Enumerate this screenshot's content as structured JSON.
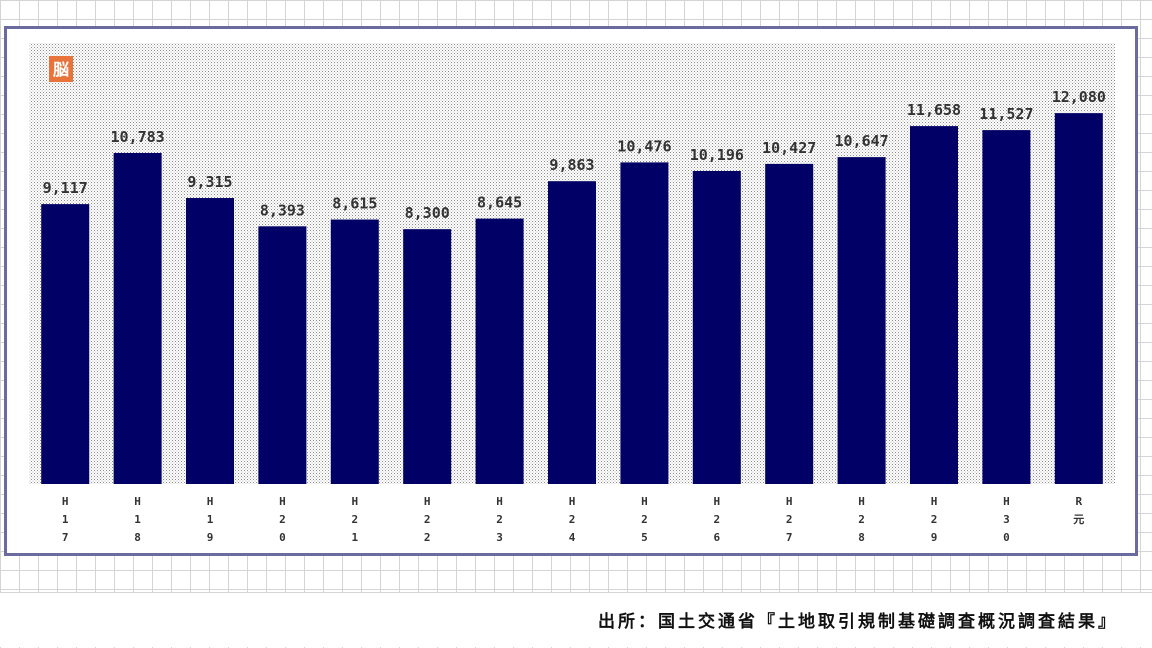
{
  "badge_glyph": "脳",
  "source": "出所：国土交通省『土地取引規制基礎調査概況調査結果』",
  "colors": {
    "bar": "#000066",
    "badge": "#e8743b",
    "frame": "#6b6b9e"
  },
  "chart_data": {
    "type": "bar",
    "title": "",
    "xlabel": "",
    "ylabel": "",
    "categories": [
      "H17",
      "H18",
      "H19",
      "H20",
      "H21",
      "H22",
      "H23",
      "H24",
      "H25",
      "H26",
      "H27",
      "H28",
      "H29",
      "H30",
      "R元"
    ],
    "tick_lines": [
      [
        "H",
        "1",
        "7"
      ],
      [
        "H",
        "1",
        "8"
      ],
      [
        "H",
        "1",
        "9"
      ],
      [
        "H",
        "2",
        "0"
      ],
      [
        "H",
        "2",
        "1"
      ],
      [
        "H",
        "2",
        "2"
      ],
      [
        "H",
        "2",
        "3"
      ],
      [
        "H",
        "2",
        "4"
      ],
      [
        "H",
        "2",
        "5"
      ],
      [
        "H",
        "2",
        "6"
      ],
      [
        "H",
        "2",
        "7"
      ],
      [
        "H",
        "2",
        "8"
      ],
      [
        "H",
        "2",
        "9"
      ],
      [
        "H",
        "3",
        "0"
      ],
      [
        "R",
        "元"
      ]
    ],
    "values": [
      9117,
      10783,
      9315,
      8393,
      8615,
      8300,
      8645,
      9863,
      10476,
      10196,
      10427,
      10647,
      11658,
      11527,
      12080
    ],
    "labels": [
      "9,117",
      "10,783",
      "9,315",
      "8,393",
      "8,615",
      "8,300",
      "8,645",
      "9,863",
      "10,476",
      "10,196",
      "10,427",
      "10,647",
      "11,658",
      "11,527",
      "12,080"
    ],
    "ylim": [
      0,
      13500
    ],
    "grid": false,
    "legend": "none"
  }
}
